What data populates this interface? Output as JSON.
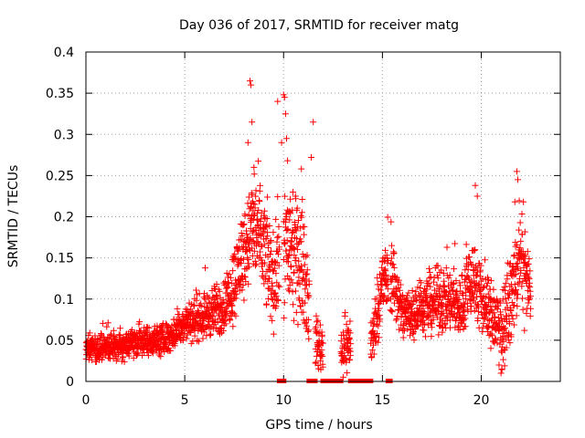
{
  "chart_data": {
    "type": "scatter",
    "title": "Day 036 of 2017, SRMTID for receiver matg",
    "xlabel": "GPS time / hours",
    "ylabel": "SRMTID / TECUs",
    "xlim": [
      0,
      24
    ],
    "ylim": [
      0,
      0.4
    ],
    "x_ticks": [
      0,
      5,
      10,
      15,
      20
    ],
    "x_tick_labels": [
      "0",
      "5",
      "10",
      "15",
      "20"
    ],
    "y_ticks": [
      0,
      0.05,
      0.1,
      0.15,
      0.2,
      0.25,
      0.3,
      0.35,
      0.4
    ],
    "y_tick_labels": [
      "0",
      "0.05",
      "0.1",
      "0.15",
      "0.2",
      "0.25",
      "0.3",
      "0.35",
      "0.4"
    ],
    "grid": true,
    "marker": "+",
    "series_color": "#ff0000",
    "gap_hours": [
      [
        9.8,
        10.0
      ],
      [
        11.3,
        11.6
      ],
      [
        12.0,
        12.9
      ],
      [
        13.4,
        14.4
      ],
      [
        15.3,
        15.4
      ]
    ],
    "envelope": [
      {
        "x": 0.0,
        "y": 0.04,
        "spread": 0.015
      },
      {
        "x": 1.0,
        "y": 0.04,
        "spread": 0.015
      },
      {
        "x": 2.0,
        "y": 0.045,
        "spread": 0.015
      },
      {
        "x": 3.0,
        "y": 0.05,
        "spread": 0.015
      },
      {
        "x": 4.0,
        "y": 0.05,
        "spread": 0.018
      },
      {
        "x": 5.0,
        "y": 0.07,
        "spread": 0.02
      },
      {
        "x": 6.0,
        "y": 0.08,
        "spread": 0.025
      },
      {
        "x": 7.0,
        "y": 0.09,
        "spread": 0.03
      },
      {
        "x": 7.5,
        "y": 0.12,
        "spread": 0.04
      },
      {
        "x": 8.0,
        "y": 0.16,
        "spread": 0.05
      },
      {
        "x": 8.5,
        "y": 0.19,
        "spread": 0.06
      },
      {
        "x": 9.0,
        "y": 0.16,
        "spread": 0.06
      },
      {
        "x": 9.5,
        "y": 0.12,
        "spread": 0.05
      },
      {
        "x": 10.0,
        "y": 0.17,
        "spread": 0.07
      },
      {
        "x": 10.5,
        "y": 0.15,
        "spread": 0.06
      },
      {
        "x": 11.0,
        "y": 0.14,
        "spread": 0.06
      },
      {
        "x": 11.5,
        "y": 0.05,
        "spread": 0.03
      },
      {
        "x": 12.5,
        "y": 0.03,
        "spread": 0.02
      },
      {
        "x": 13.0,
        "y": 0.04,
        "spread": 0.03
      },
      {
        "x": 13.5,
        "y": 0.05,
        "spread": 0.03
      },
      {
        "x": 14.5,
        "y": 0.05,
        "spread": 0.03
      },
      {
        "x": 15.0,
        "y": 0.12,
        "spread": 0.04
      },
      {
        "x": 15.5,
        "y": 0.13,
        "spread": 0.04
      },
      {
        "x": 16.0,
        "y": 0.08,
        "spread": 0.03
      },
      {
        "x": 17.0,
        "y": 0.09,
        "spread": 0.03
      },
      {
        "x": 18.0,
        "y": 0.1,
        "spread": 0.035
      },
      {
        "x": 19.0,
        "y": 0.09,
        "spread": 0.035
      },
      {
        "x": 19.5,
        "y": 0.13,
        "spread": 0.05
      },
      {
        "x": 20.0,
        "y": 0.1,
        "spread": 0.04
      },
      {
        "x": 21.0,
        "y": 0.06,
        "spread": 0.04
      },
      {
        "x": 21.5,
        "y": 0.1,
        "spread": 0.04
      },
      {
        "x": 22.0,
        "y": 0.15,
        "spread": 0.05
      },
      {
        "x": 22.5,
        "y": 0.1,
        "spread": 0.04
      }
    ],
    "highlights": [
      {
        "x": 8.3,
        "y": 0.365
      },
      {
        "x": 8.35,
        "y": 0.36
      },
      {
        "x": 8.4,
        "y": 0.315
      },
      {
        "x": 8.2,
        "y": 0.29
      },
      {
        "x": 8.5,
        "y": 0.26
      },
      {
        "x": 10.0,
        "y": 0.348
      },
      {
        "x": 10.05,
        "y": 0.345
      },
      {
        "x": 9.7,
        "y": 0.34
      },
      {
        "x": 10.1,
        "y": 0.325
      },
      {
        "x": 10.15,
        "y": 0.295
      },
      {
        "x": 9.9,
        "y": 0.29
      },
      {
        "x": 11.5,
        "y": 0.315
      },
      {
        "x": 11.4,
        "y": 0.272
      },
      {
        "x": 10.2,
        "y": 0.268
      },
      {
        "x": 10.9,
        "y": 0.258
      },
      {
        "x": 10.6,
        "y": 0.225
      },
      {
        "x": 19.7,
        "y": 0.238
      },
      {
        "x": 19.8,
        "y": 0.225
      },
      {
        "x": 21.8,
        "y": 0.255
      },
      {
        "x": 21.85,
        "y": 0.245
      },
      {
        "x": 21.7,
        "y": 0.218
      },
      {
        "x": 21.0,
        "y": 0.01
      },
      {
        "x": 21.05,
        "y": 0.015
      },
      {
        "x": 20.9,
        "y": 0.02
      }
    ]
  }
}
